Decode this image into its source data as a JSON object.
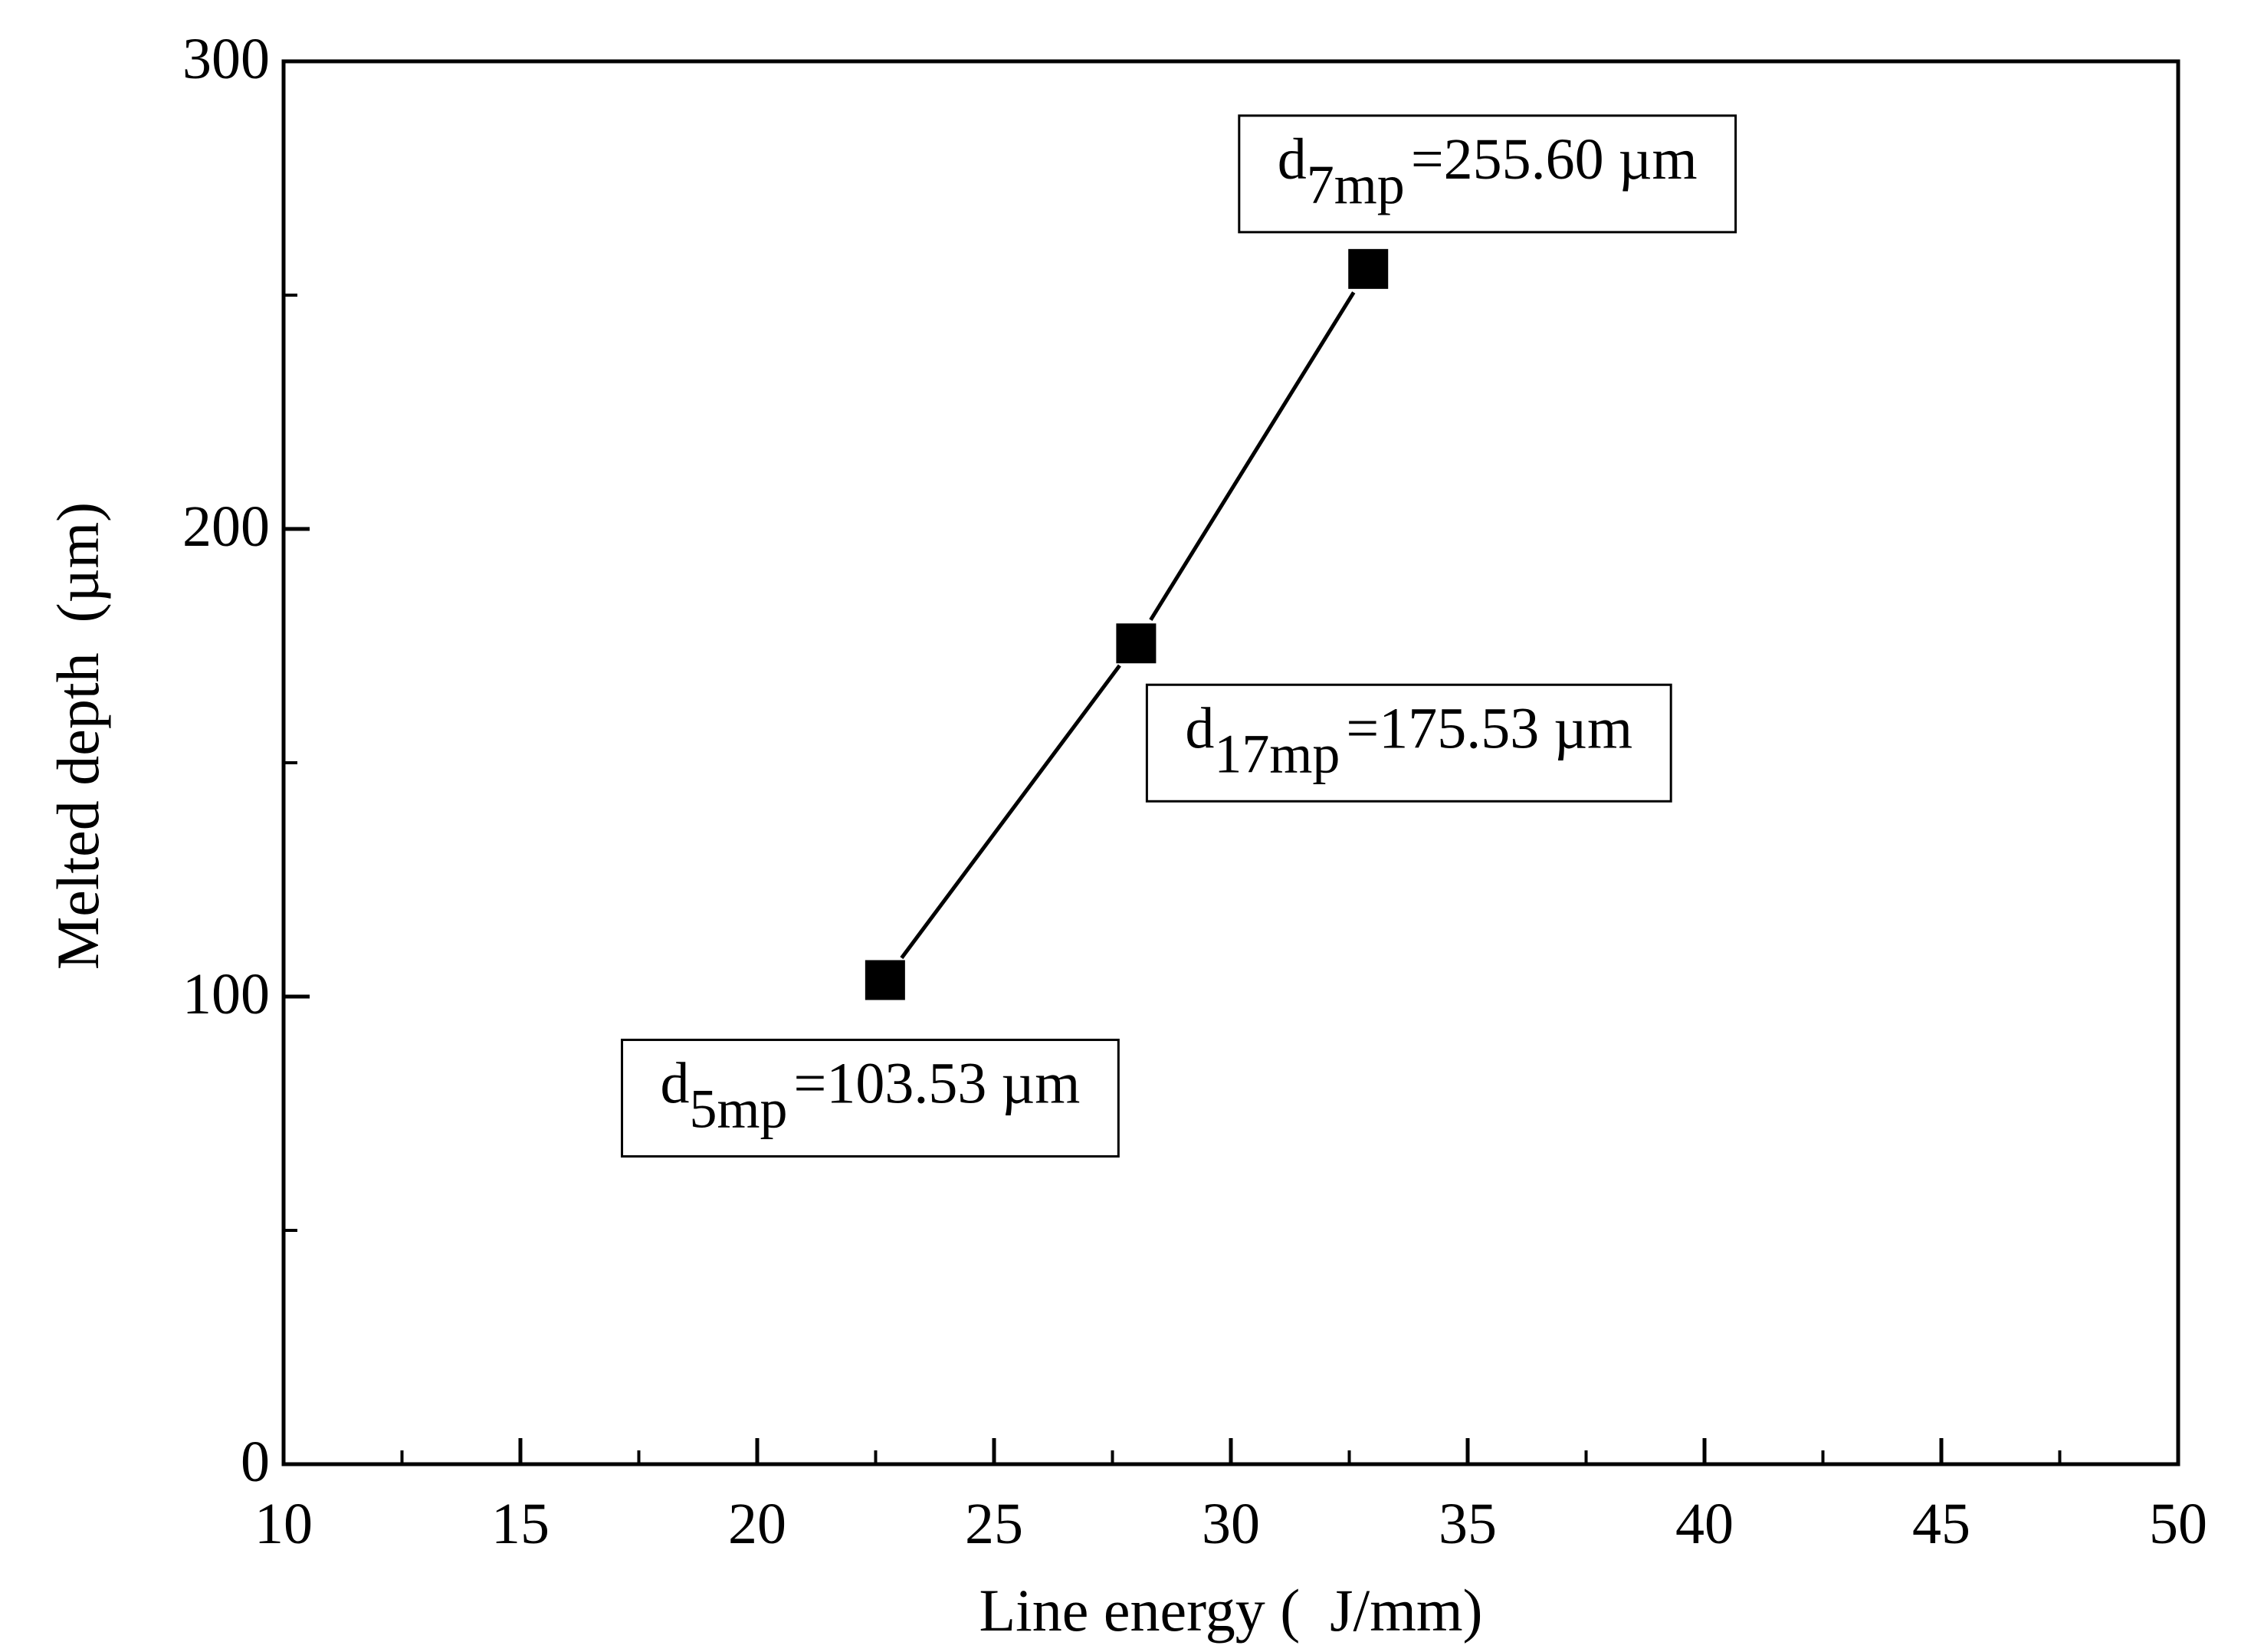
{
  "chart_data": {
    "type": "line",
    "title": "",
    "xlabel": "Line energy (  J/mm)",
    "ylabel": "Melted depth  (µm)",
    "xlim": [
      10,
      50
    ],
    "ylim": [
      0,
      300
    ],
    "x_ticks": [
      "10",
      "15",
      "20",
      "25",
      "30",
      "35",
      "40",
      "45",
      "50"
    ],
    "y_ticks": [
      "0",
      "100",
      "200",
      "300"
    ],
    "grid": false,
    "legend": "none",
    "series": [
      {
        "name": "Melted depth",
        "marker": "square",
        "color": "#000000",
        "points": [
          {
            "x": 22.7,
            "y": 103.53
          },
          {
            "x": 28.0,
            "y": 175.53
          },
          {
            "x": 32.9,
            "y": 255.6
          }
        ]
      }
    ],
    "annotations": [
      {
        "base": "d",
        "sub": "5mp",
        "text": "=103.53 µm",
        "point_index": 0,
        "placement": "below-left"
      },
      {
        "base": "d",
        "sub": "17mp",
        "text": "=175.53 µm",
        "point_index": 1,
        "placement": "below-right"
      },
      {
        "base": "d",
        "sub": "7mp",
        "text": "=255.60 µm",
        "point_index": 2,
        "placement": "above"
      }
    ]
  }
}
